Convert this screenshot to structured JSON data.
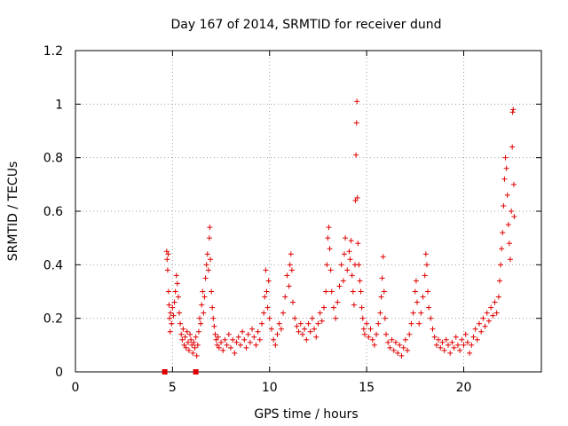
{
  "chart_data": {
    "type": "scatter",
    "title": "Day 167 of 2014, SRMTID for receiver dund",
    "xlabel": "GPS time / hours",
    "ylabel": "SRMTID / TECUs",
    "xlim": [
      0,
      24
    ],
    "ylim": [
      0,
      1.2
    ],
    "xticks": [
      0,
      5,
      10,
      15,
      20
    ],
    "yticks": [
      0,
      0.2,
      0.4,
      0.6,
      0.8,
      1,
      1.2
    ],
    "ytick_labels": [
      "0",
      "0.2",
      "0.4",
      "0.6",
      "0.8",
      "1",
      "1.2"
    ],
    "grid": true,
    "marker": "plus",
    "marker_color": "#e00000",
    "zero_markers": [
      {
        "x": 4.6,
        "y": 0
      },
      {
        "x": 6.2,
        "y": 0
      }
    ],
    "series": [
      {
        "name": "SRMTID",
        "points": [
          [
            4.7,
            0.45
          ],
          [
            4.72,
            0.42
          ],
          [
            4.75,
            0.38
          ],
          [
            4.78,
            0.44
          ],
          [
            4.8,
            0.3
          ],
          [
            4.82,
            0.25
          ],
          [
            4.85,
            0.2
          ],
          [
            4.88,
            0.15
          ],
          [
            4.9,
            0.22
          ],
          [
            4.95,
            0.18
          ],
          [
            5.0,
            0.24
          ],
          [
            5.05,
            0.21
          ],
          [
            5.1,
            0.26
          ],
          [
            5.15,
            0.3
          ],
          [
            5.2,
            0.36
          ],
          [
            5.25,
            0.33
          ],
          [
            5.3,
            0.28
          ],
          [
            5.35,
            0.22
          ],
          [
            5.4,
            0.18
          ],
          [
            5.45,
            0.14
          ],
          [
            5.5,
            0.12
          ],
          [
            5.55,
            0.16
          ],
          [
            5.6,
            0.1
          ],
          [
            5.65,
            0.13
          ],
          [
            5.7,
            0.09
          ],
          [
            5.75,
            0.15
          ],
          [
            5.8,
            0.11
          ],
          [
            5.85,
            0.08
          ],
          [
            5.9,
            0.14
          ],
          [
            5.95,
            0.12
          ],
          [
            6.0,
            0.1
          ],
          [
            6.05,
            0.07
          ],
          [
            6.1,
            0.11
          ],
          [
            6.15,
            0.09
          ],
          [
            6.2,
            0.13
          ],
          [
            6.25,
            0.06
          ],
          [
            6.3,
            0.1
          ],
          [
            6.35,
            0.15
          ],
          [
            6.4,
            0.2
          ],
          [
            6.45,
            0.18
          ],
          [
            6.5,
            0.25
          ],
          [
            6.55,
            0.3
          ],
          [
            6.6,
            0.22
          ],
          [
            6.65,
            0.28
          ],
          [
            6.7,
            0.35
          ],
          [
            6.75,
            0.4
          ],
          [
            6.8,
            0.44
          ],
          [
            6.85,
            0.38
          ],
          [
            6.9,
            0.5
          ],
          [
            6.92,
            0.54
          ],
          [
            6.95,
            0.42
          ],
          [
            7.0,
            0.3
          ],
          [
            7.05,
            0.24
          ],
          [
            7.1,
            0.2
          ],
          [
            7.15,
            0.17
          ],
          [
            7.2,
            0.14
          ],
          [
            7.25,
            0.12
          ],
          [
            7.3,
            0.1
          ],
          [
            7.35,
            0.13
          ],
          [
            7.4,
            0.09
          ],
          [
            7.5,
            0.11
          ],
          [
            7.6,
            0.08
          ],
          [
            7.7,
            0.12
          ],
          [
            7.8,
            0.1
          ],
          [
            7.9,
            0.14
          ],
          [
            8.0,
            0.09
          ],
          [
            8.1,
            0.12
          ],
          [
            8.2,
            0.07
          ],
          [
            8.3,
            0.11
          ],
          [
            8.4,
            0.13
          ],
          [
            8.5,
            0.1
          ],
          [
            8.6,
            0.15
          ],
          [
            8.7,
            0.12
          ],
          [
            8.8,
            0.09
          ],
          [
            8.9,
            0.14
          ],
          [
            9.0,
            0.11
          ],
          [
            9.1,
            0.16
          ],
          [
            9.2,
            0.13
          ],
          [
            9.3,
            0.1
          ],
          [
            9.4,
            0.15
          ],
          [
            9.5,
            0.12
          ],
          [
            9.6,
            0.18
          ],
          [
            9.7,
            0.22
          ],
          [
            9.75,
            0.28
          ],
          [
            9.8,
            0.38
          ],
          [
            9.85,
            0.3
          ],
          [
            9.9,
            0.24
          ],
          [
            9.95,
            0.34
          ],
          [
            10.0,
            0.2
          ],
          [
            10.1,
            0.16
          ],
          [
            10.2,
            0.12
          ],
          [
            10.3,
            0.1
          ],
          [
            10.4,
            0.14
          ],
          [
            10.5,
            0.18
          ],
          [
            10.6,
            0.16
          ],
          [
            10.7,
            0.22
          ],
          [
            10.8,
            0.28
          ],
          [
            10.9,
            0.36
          ],
          [
            11.0,
            0.32
          ],
          [
            11.05,
            0.4
          ],
          [
            11.1,
            0.44
          ],
          [
            11.15,
            0.38
          ],
          [
            11.2,
            0.26
          ],
          [
            11.3,
            0.2
          ],
          [
            11.4,
            0.17
          ],
          [
            11.5,
            0.15
          ],
          [
            11.6,
            0.18
          ],
          [
            11.7,
            0.14
          ],
          [
            11.8,
            0.16
          ],
          [
            11.9,
            0.12
          ],
          [
            12.0,
            0.18
          ],
          [
            12.1,
            0.15
          ],
          [
            12.2,
            0.2
          ],
          [
            12.3,
            0.16
          ],
          [
            12.4,
            0.13
          ],
          [
            12.5,
            0.18
          ],
          [
            12.6,
            0.22
          ],
          [
            12.7,
            0.19
          ],
          [
            12.8,
            0.24
          ],
          [
            12.9,
            0.3
          ],
          [
            12.95,
            0.4
          ],
          [
            13.0,
            0.5
          ],
          [
            13.05,
            0.54
          ],
          [
            13.1,
            0.46
          ],
          [
            13.15,
            0.38
          ],
          [
            13.2,
            0.3
          ],
          [
            13.3,
            0.24
          ],
          [
            13.4,
            0.2
          ],
          [
            13.5,
            0.26
          ],
          [
            13.6,
            0.32
          ],
          [
            13.7,
            0.4
          ],
          [
            13.8,
            0.34
          ],
          [
            13.85,
            0.44
          ],
          [
            13.9,
            0.5
          ],
          [
            14.0,
            0.38
          ],
          [
            14.1,
            0.45
          ],
          [
            14.15,
            0.42
          ],
          [
            14.2,
            0.49
          ],
          [
            14.25,
            0.36
          ],
          [
            14.3,
            0.3
          ],
          [
            14.35,
            0.25
          ],
          [
            14.4,
            0.4
          ],
          [
            14.42,
            0.64
          ],
          [
            14.45,
            0.81
          ],
          [
            14.48,
            0.93
          ],
          [
            14.5,
            1.01
          ],
          [
            14.52,
            0.65
          ],
          [
            14.55,
            0.48
          ],
          [
            14.6,
            0.4
          ],
          [
            14.65,
            0.34
          ],
          [
            14.7,
            0.3
          ],
          [
            14.75,
            0.24
          ],
          [
            14.8,
            0.2
          ],
          [
            14.85,
            0.16
          ],
          [
            14.9,
            0.14
          ],
          [
            15.0,
            0.18
          ],
          [
            15.1,
            0.13
          ],
          [
            15.2,
            0.16
          ],
          [
            15.3,
            0.12
          ],
          [
            15.4,
            0.1
          ],
          [
            15.5,
            0.14
          ],
          [
            15.6,
            0.18
          ],
          [
            15.7,
            0.22
          ],
          [
            15.75,
            0.28
          ],
          [
            15.8,
            0.35
          ],
          [
            15.85,
            0.43
          ],
          [
            15.9,
            0.3
          ],
          [
            15.95,
            0.2
          ],
          [
            16.0,
            0.14
          ],
          [
            16.1,
            0.11
          ],
          [
            16.2,
            0.09
          ],
          [
            16.3,
            0.12
          ],
          [
            16.4,
            0.08
          ],
          [
            16.5,
            0.11
          ],
          [
            16.6,
            0.07
          ],
          [
            16.7,
            0.1
          ],
          [
            16.8,
            0.06
          ],
          [
            16.9,
            0.09
          ],
          [
            17.0,
            0.12
          ],
          [
            17.1,
            0.08
          ],
          [
            17.2,
            0.14
          ],
          [
            17.3,
            0.18
          ],
          [
            17.4,
            0.22
          ],
          [
            17.5,
            0.3
          ],
          [
            17.55,
            0.34
          ],
          [
            17.6,
            0.26
          ],
          [
            17.7,
            0.18
          ],
          [
            17.8,
            0.22
          ],
          [
            17.9,
            0.28
          ],
          [
            18.0,
            0.36
          ],
          [
            18.05,
            0.44
          ],
          [
            18.1,
            0.4
          ],
          [
            18.15,
            0.3
          ],
          [
            18.2,
            0.24
          ],
          [
            18.3,
            0.2
          ],
          [
            18.4,
            0.16
          ],
          [
            18.5,
            0.13
          ],
          [
            18.6,
            0.1
          ],
          [
            18.7,
            0.12
          ],
          [
            18.8,
            0.09
          ],
          [
            18.9,
            0.11
          ],
          [
            19.0,
            0.08
          ],
          [
            19.1,
            0.12
          ],
          [
            19.2,
            0.1
          ],
          [
            19.3,
            0.07
          ],
          [
            19.4,
            0.11
          ],
          [
            19.5,
            0.09
          ],
          [
            19.6,
            0.13
          ],
          [
            19.7,
            0.1
          ],
          [
            19.8,
            0.08
          ],
          [
            19.9,
            0.12
          ],
          [
            20.0,
            0.1
          ],
          [
            20.1,
            0.14
          ],
          [
            20.2,
            0.11
          ],
          [
            20.3,
            0.07
          ],
          [
            20.4,
            0.1
          ],
          [
            20.5,
            0.13
          ],
          [
            20.6,
            0.16
          ],
          [
            20.7,
            0.12
          ],
          [
            20.8,
            0.18
          ],
          [
            20.9,
            0.15
          ],
          [
            21.0,
            0.2
          ],
          [
            21.1,
            0.17
          ],
          [
            21.2,
            0.22
          ],
          [
            21.3,
            0.19
          ],
          [
            21.4,
            0.24
          ],
          [
            21.5,
            0.21
          ],
          [
            21.6,
            0.26
          ],
          [
            21.7,
            0.22
          ],
          [
            21.8,
            0.28
          ],
          [
            21.85,
            0.34
          ],
          [
            21.9,
            0.4
          ],
          [
            21.95,
            0.46
          ],
          [
            22.0,
            0.52
          ],
          [
            22.05,
            0.62
          ],
          [
            22.1,
            0.72
          ],
          [
            22.15,
            0.8
          ],
          [
            22.2,
            0.76
          ],
          [
            22.25,
            0.66
          ],
          [
            22.3,
            0.55
          ],
          [
            22.35,
            0.48
          ],
          [
            22.4,
            0.42
          ],
          [
            22.45,
            0.6
          ],
          [
            22.5,
            0.84
          ],
          [
            22.52,
            0.97
          ],
          [
            22.55,
            0.98
          ],
          [
            22.58,
            0.7
          ],
          [
            22.6,
            0.58
          ]
        ]
      }
    ]
  }
}
